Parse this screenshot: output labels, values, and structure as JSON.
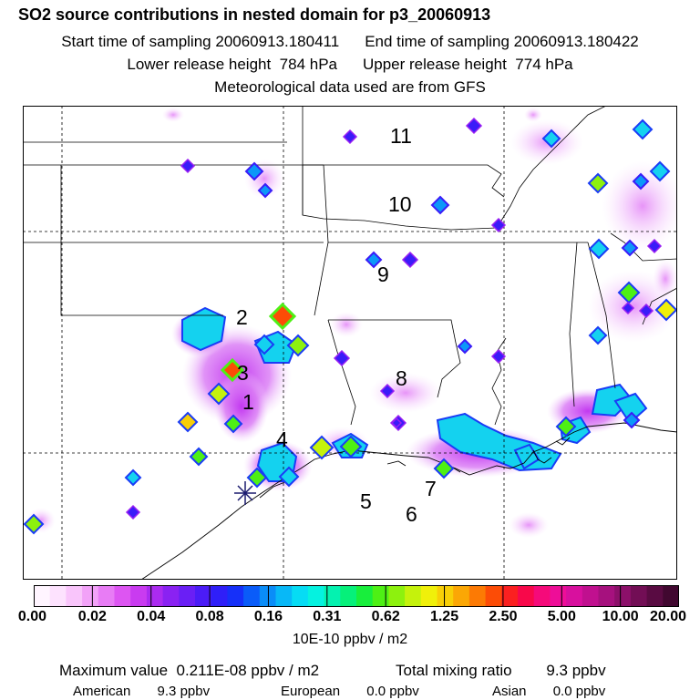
{
  "header": {
    "title": "SO2 source contributions in nested domain for p3_20060913",
    "start_label": "Start time of sampling",
    "start_value": "20060913.180411",
    "end_label": "End time of sampling",
    "end_value": "20060913.180422",
    "lower_label": "Lower release height",
    "lower_value": "784 hPa",
    "upper_label": "Upper release height",
    "upper_value": "774 hPa",
    "met_note": "Meteorological data used are from GFS"
  },
  "map": {
    "region_labels": [
      "1",
      "2",
      "3",
      "4",
      "5",
      "6",
      "7",
      "8",
      "9",
      "10",
      "11"
    ]
  },
  "colorbar": {
    "ticks": [
      "0.00",
      "0.02",
      "0.04",
      "0.08",
      "0.16",
      "0.31",
      "0.62",
      "1.25",
      "2.50",
      "5.00",
      "10.00",
      "20.00"
    ],
    "colors": [
      "#fff5ff",
      "#fde2fe",
      "#f9c5fb",
      "#f2a2f8",
      "#e87cf5",
      "#dd55f2",
      "#c93bf0",
      "#ab2bf0",
      "#8a22f2",
      "#6a1ff5",
      "#4b1cf7",
      "#2f1ff8",
      "#1630f9",
      "#0a5cf9",
      "#0a8df8",
      "#08b8f7",
      "#06dcf4",
      "#05f2e0",
      "#04f2b0",
      "#06f07a",
      "#18ee3c",
      "#4ef015",
      "#8df10e",
      "#c5f20c",
      "#f0f00a",
      "#f8cf07",
      "#fba705",
      "#fc7a04",
      "#fc4c06",
      "#fb2020",
      "#f8084a",
      "#f50a7a",
      "#ee0e98",
      "#d8109e",
      "#c0108f",
      "#a6117e",
      "#8c106a",
      "#720e55",
      "#590b42",
      "#410830"
    ],
    "units": "10E-10 ppbv / m2"
  },
  "summary": {
    "max_label": "Maximum value",
    "max_value": "0.211E-08 ppbv / m2",
    "total_label": "Total mixing ratio",
    "total_value": "9.3 ppbv",
    "american_label": "American",
    "american_value": "9.3 ppbv",
    "european_label": "European",
    "european_value": "0.0 ppbv",
    "asian_label": "Asian",
    "asian_value": "0.0 ppbv"
  }
}
